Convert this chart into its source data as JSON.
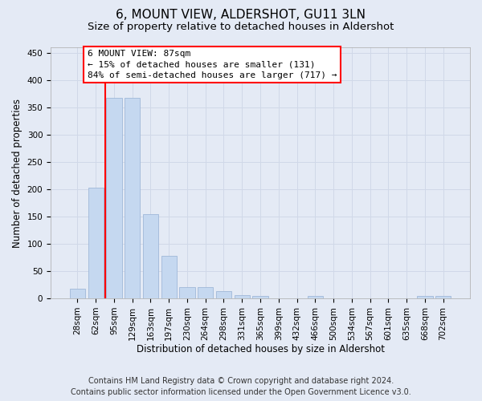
{
  "title": "6, MOUNT VIEW, ALDERSHOT, GU11 3LN",
  "subtitle": "Size of property relative to detached houses in Aldershot",
  "xlabel": "Distribution of detached houses by size in Aldershot",
  "ylabel": "Number of detached properties",
  "footer_line1": "Contains HM Land Registry data © Crown copyright and database right 2024.",
  "footer_line2": "Contains public sector information licensed under the Open Government Licence v3.0.",
  "categories": [
    "28sqm",
    "62sqm",
    "95sqm",
    "129sqm",
    "163sqm",
    "197sqm",
    "230sqm",
    "264sqm",
    "298sqm",
    "331sqm",
    "365sqm",
    "399sqm",
    "432sqm",
    "466sqm",
    "500sqm",
    "534sqm",
    "567sqm",
    "601sqm",
    "635sqm",
    "668sqm",
    "702sqm"
  ],
  "values": [
    18,
    203,
    367,
    367,
    155,
    78,
    20,
    20,
    14,
    6,
    5,
    0,
    0,
    4,
    0,
    0,
    0,
    0,
    0,
    4,
    4
  ],
  "bar_color": "#c5d8f0",
  "bar_edge_color": "#a0b8d8",
  "red_line_x": 1.5,
  "annotation_text": "6 MOUNT VIEW: 87sqm\n← 15% of detached houses are smaller (131)\n84% of semi-detached houses are larger (717) →",
  "ylim": [
    0,
    460
  ],
  "yticks": [
    0,
    50,
    100,
    150,
    200,
    250,
    300,
    350,
    400,
    450
  ],
  "grid_color": "#d0d8e8",
  "background_color": "#e4eaf5",
  "title_fontsize": 11,
  "subtitle_fontsize": 9.5,
  "tick_fontsize": 7.5,
  "ylabel_fontsize": 8.5,
  "xlabel_fontsize": 8.5,
  "annot_fontsize": 8,
  "footer_fontsize": 7
}
